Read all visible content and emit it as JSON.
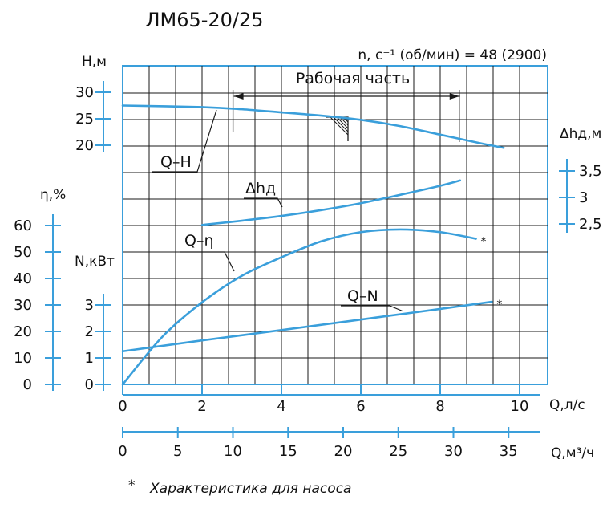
{
  "chart_data": {
    "type": "line",
    "title": "ЛМ65-20/25",
    "speed_label": "n, с⁻¹ (об/мин) = 48 (2900)",
    "operating_zone_label": "Рабочая часть",
    "operating_zone_q": [
      2.8,
      8.5
    ],
    "footnote_star": "*",
    "footnote_text": "Характеристика для насоса",
    "x_axis_flow_ls": {
      "label": "Q,л/с",
      "ticks": [
        0,
        2,
        4,
        6,
        8,
        10
      ],
      "range": [
        0,
        10.5
      ]
    },
    "x_axis_flow_m3h": {
      "label": "Q,м³/ч",
      "ticks": [
        0,
        5,
        10,
        15,
        20,
        25,
        30,
        35
      ]
    },
    "axes": {
      "H": {
        "label": "Н,м",
        "ticks": [
          20,
          25,
          30
        ]
      },
      "eta": {
        "label": "η,%",
        "ticks": [
          0,
          10,
          20,
          30,
          40,
          50,
          60
        ]
      },
      "N": {
        "label": "N,кВт",
        "ticks": [
          0,
          1,
          2,
          3
        ]
      },
      "NPSH": {
        "label": "Δhд,м",
        "ticks": [
          "3,5",
          "3",
          "2,5"
        ]
      }
    },
    "series": [
      {
        "name": "Q–H",
        "axis": "H",
        "x": [
          0,
          2,
          3,
          4,
          5,
          6,
          7,
          8,
          9,
          9.6
        ],
        "y": [
          27.5,
          27.2,
          26.8,
          26.2,
          25.6,
          24.8,
          23.6,
          22.0,
          20.4,
          19.5
        ]
      },
      {
        "name": "Δhд",
        "axis": "NPSH",
        "x": [
          2,
          3,
          4,
          5,
          6,
          7,
          8,
          8.5
        ],
        "y": [
          2.48,
          2.56,
          2.65,
          2.76,
          2.89,
          3.05,
          3.22,
          3.32
        ]
      },
      {
        "name": "Q–η",
        "axis": "eta",
        "star": true,
        "x": [
          0,
          1,
          2,
          3,
          4,
          5,
          6,
          7,
          8,
          8.9
        ],
        "y": [
          0,
          18,
          31,
          41,
          48,
          54,
          57.5,
          58.5,
          57.5,
          55
        ]
      },
      {
        "name": "Q–N",
        "axis": "N",
        "star": true,
        "x": [
          0,
          2,
          4,
          6,
          8,
          9.3
        ],
        "y": [
          1.25,
          1.66,
          2.05,
          2.45,
          2.85,
          3.12
        ]
      }
    ],
    "grid": true
  },
  "colors": {
    "curve": "#3a9fdb",
    "axis_blue": "#3a9fdb",
    "grid": "#1a1a1a"
  }
}
